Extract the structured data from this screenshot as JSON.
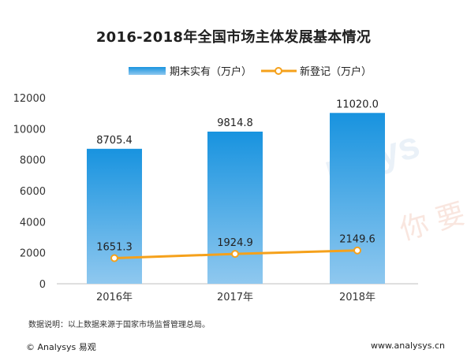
{
  "watermark": {
    "text": "nalys",
    "text2": "你 要"
  },
  "footer": {
    "note": "数据说明：以上数据来源于国家市场监督管理总局。",
    "copyright": "© Analysys 易观",
    "url": "www.analysys.cn"
  },
  "chart_data": {
    "type": "bar",
    "title": "2016-2018年全国市场主体发展基本情况",
    "categories": [
      "2016年",
      "2017年",
      "2018年"
    ],
    "ylim": [
      0,
      12000
    ],
    "yticks": [
      0,
      2000,
      4000,
      6000,
      8000,
      10000,
      12000
    ],
    "grid": false,
    "legend_position": "top",
    "series": [
      {
        "name": "期末实有（万户）",
        "kind": "bar",
        "values": [
          8705.4,
          9814.8,
          11020.0
        ],
        "labels": [
          "8705.4",
          "9814.8",
          "11020.0"
        ],
        "color_top": "#1893df",
        "color_bottom": "#8fc8ef"
      },
      {
        "name": "新登记（万户）",
        "kind": "line",
        "values": [
          1651.3,
          1924.9,
          2149.6
        ],
        "labels": [
          "1651.3",
          "1924.9",
          "2149.6"
        ],
        "color": "#f5a11b"
      }
    ]
  }
}
